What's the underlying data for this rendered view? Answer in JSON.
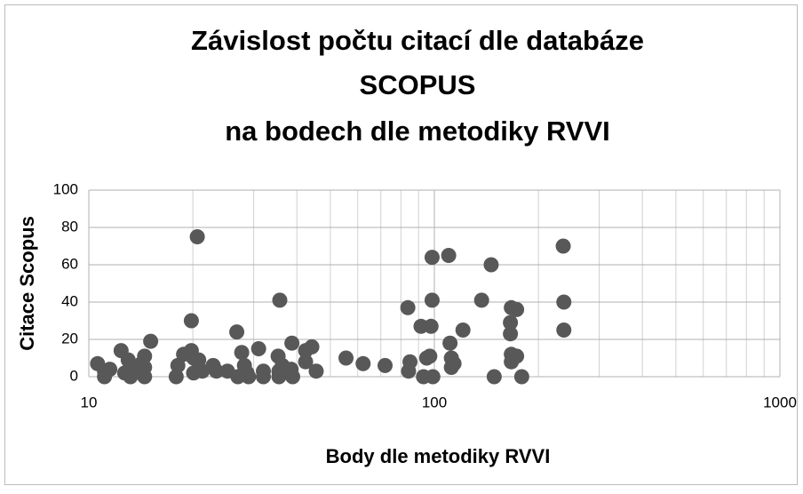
{
  "chart_data": {
    "type": "scatter",
    "title": [
      "Závislost počtu citací dle databáze",
      "SCOPUS",
      "na bodech dle metodiky RVVI"
    ],
    "x_label": "Body dle metodiky RVVI",
    "y_label": "Citace Scopus",
    "x": [
      10.6,
      11.1,
      11.1,
      11.5,
      12.4,
      12.7,
      13.0,
      13.2,
      13.4,
      14.2,
      14.5,
      14.5,
      14.5,
      15.1,
      17.9,
      18.1,
      18.8,
      19.8,
      19.8,
      20.1,
      20.1,
      20.6,
      20.8,
      21.3,
      22.9,
      23.4,
      25.2,
      26.8,
      27.0,
      27.7,
      28.2,
      28.7,
      29,
      31,
      32,
      32,
      35.3,
      35.5,
      35.5,
      35.7,
      36.3,
      38.5,
      38.7,
      38.9,
      42.4,
      42.4,
      44.2,
      45.5,
      55.5,
      62.2,
      72,
      83.8,
      84.2,
      85,
      91.5,
      93,
      95,
      97,
      97.8,
      98.5,
      98.5,
      99,
      110,
      111,
      112,
      112,
      114,
      121,
      137,
      146,
      149,
      167,
      166,
      166,
      167,
      167,
      173,
      173,
      179,
      236,
      237,
      237
    ],
    "values": [
      7,
      3,
      0,
      4,
      14,
      2,
      9,
      0,
      3,
      7,
      11,
      0,
      5,
      19,
      0,
      6,
      12,
      30,
      14,
      10,
      2,
      75,
      9,
      3,
      6,
      3,
      3,
      24,
      0,
      13,
      6,
      2,
      0,
      15,
      0,
      3,
      11,
      0,
      3,
      41,
      6,
      4,
      18,
      0,
      8,
      14,
      16,
      3,
      10,
      7,
      6,
      37,
      3,
      8,
      27,
      0,
      10,
      11,
      27,
      64,
      41,
      0,
      65,
      18,
      10,
      5,
      7,
      25,
      41,
      60,
      0,
      37,
      29,
      23,
      12,
      8,
      36,
      11,
      0,
      70,
      40,
      25
    ],
    "color": "#585858",
    "xscale": "log",
    "xlim": [
      10,
      1000
    ],
    "xticks": [
      10,
      100,
      1000
    ],
    "ylim": [
      0,
      100
    ],
    "yticks": [
      0,
      20,
      40,
      60,
      80,
      100
    ],
    "grid": true
  }
}
